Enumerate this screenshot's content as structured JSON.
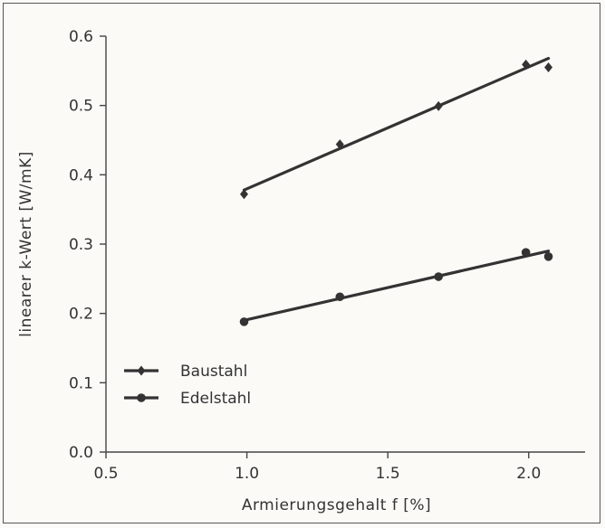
{
  "chart_data": {
    "type": "scatter",
    "xlabel": "Armierungsgehalt  f  [%]",
    "ylabel": "linearer  k-Wert  [W/mK]",
    "xlim": [
      0.5,
      2.2
    ],
    "ylim": [
      0.0,
      0.6
    ],
    "xticks": [
      0.5,
      1.0,
      1.5,
      2.0
    ],
    "yticks": [
      0.0,
      0.1,
      0.2,
      0.3,
      0.4,
      0.5,
      0.6
    ],
    "xtick_labels": [
      "0.5",
      "1.0",
      "1.5",
      "2.0"
    ],
    "ytick_labels": [
      "0.0",
      "0.1",
      "0.2",
      "0.3",
      "0.4",
      "0.5",
      "0.6"
    ],
    "grid": false,
    "legend_position": "bottom-left",
    "series": [
      {
        "name": "Baustahl",
        "marker": "diamond",
        "color": "#333333",
        "x": [
          0.99,
          1.33,
          1.68,
          1.99,
          2.07
        ],
        "y": [
          0.372,
          0.444,
          0.499,
          0.559,
          0.555
        ],
        "fit": {
          "x": [
            0.99,
            2.07
          ],
          "y": [
            0.378,
            0.568
          ]
        }
      },
      {
        "name": "Edelstahl",
        "marker": "circle",
        "color": "#333333",
        "x": [
          0.99,
          1.33,
          1.68,
          1.99,
          2.07
        ],
        "y": [
          0.188,
          0.224,
          0.253,
          0.288,
          0.282
        ],
        "fit": {
          "x": [
            0.99,
            2.07
          ],
          "y": [
            0.19,
            0.29
          ]
        }
      }
    ]
  }
}
